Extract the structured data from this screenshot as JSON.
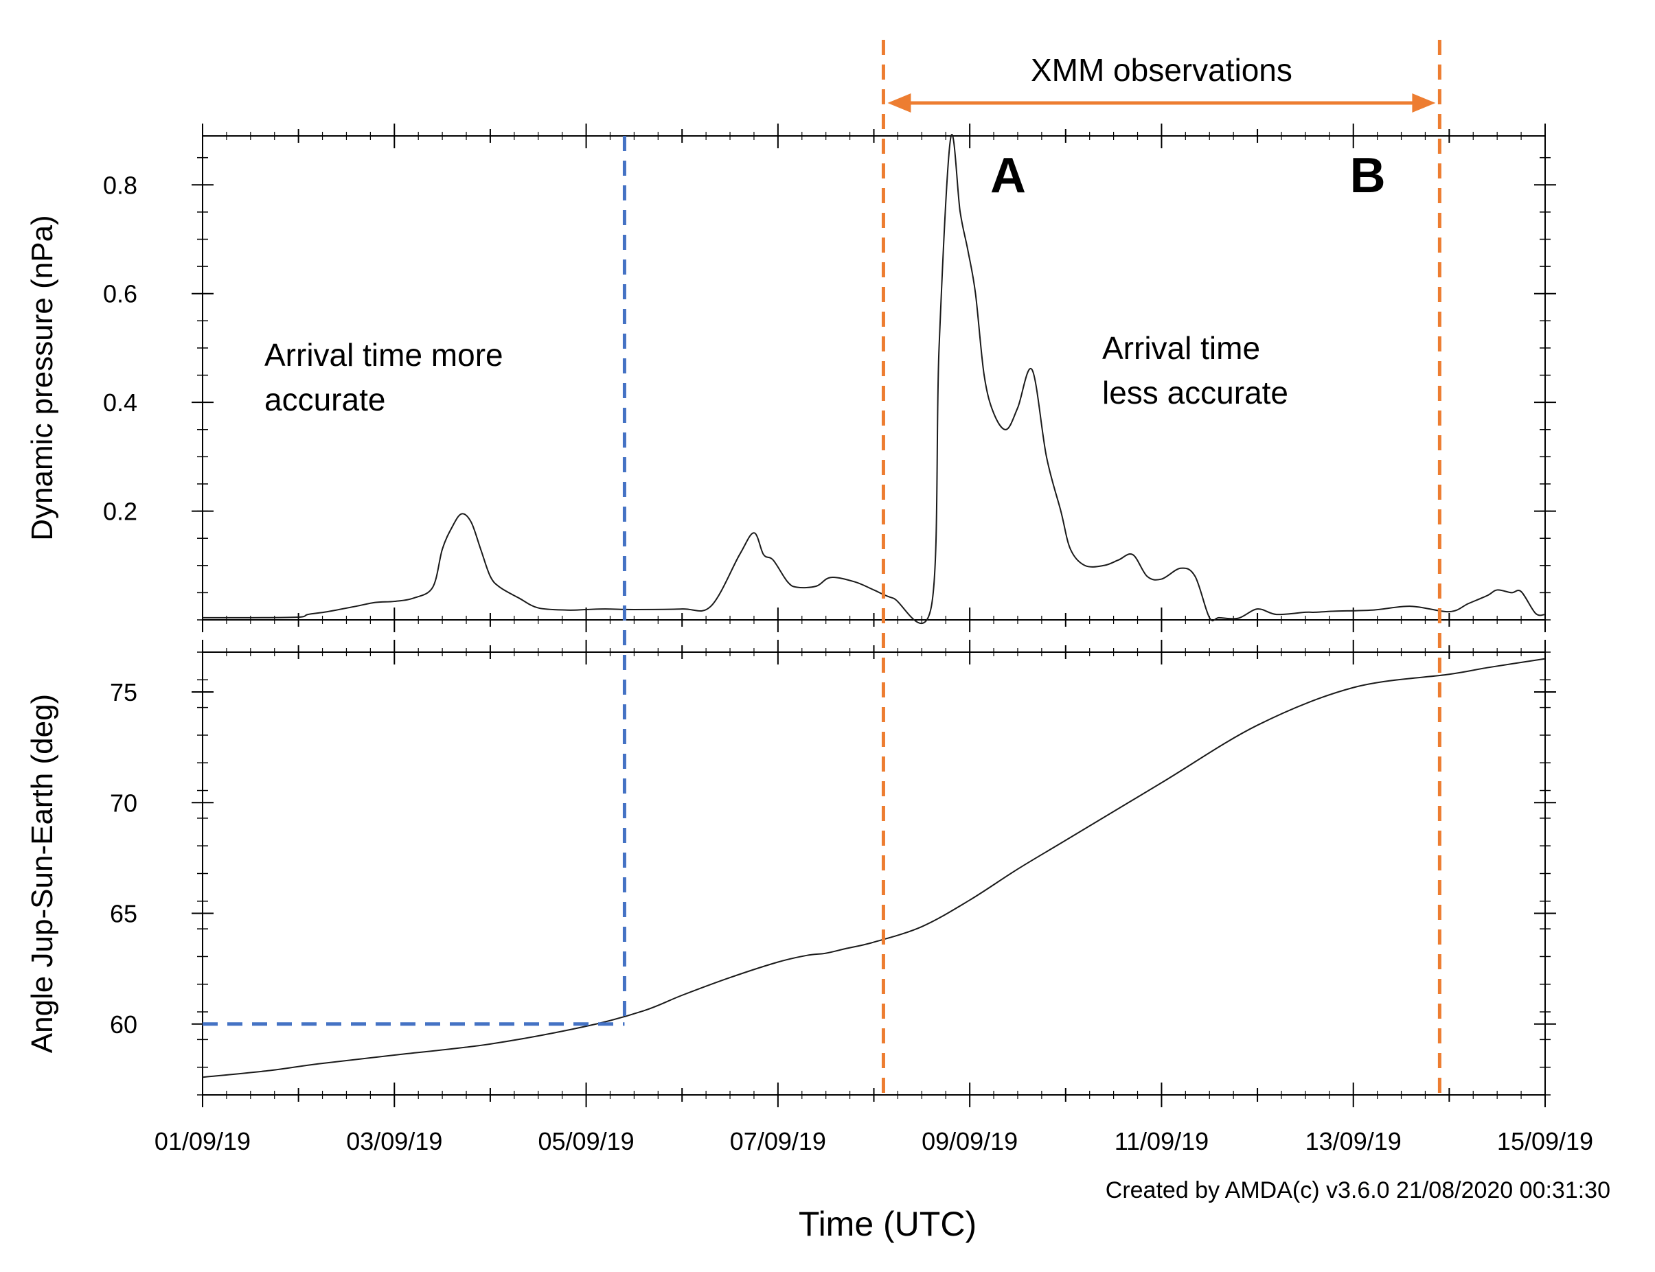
{
  "colors": {
    "orange": "#ED7D31",
    "blue": "#4472C4",
    "line": "#1a1a1a"
  },
  "chart_data": {
    "type": "line",
    "x_unit": "days since 01/09/19 00:00 UTC",
    "xlim": [
      0,
      14
    ],
    "x_tick_labels": [
      "01/09/19",
      "03/09/19",
      "05/09/19",
      "07/09/19",
      "09/09/19",
      "11/09/19",
      "13/09/19",
      "15/09/19"
    ],
    "x_tick_values": [
      0,
      2,
      4,
      6,
      8,
      10,
      12,
      14
    ],
    "xlabel": "Time (UTC)",
    "credit": "Created by AMDA(c) v3.6.0 21/08/2020 00:31:30",
    "panels": [
      {
        "name": "dynamic-pressure",
        "ylabel": "Dynamic pressure (nPa)",
        "ylim": [
          0,
          0.89
        ],
        "y_ticks": [
          0.2,
          0.4,
          0.6,
          0.8
        ],
        "y_tick_labels": [
          "0.2",
          "0.4",
          "0.6",
          "0.8"
        ],
        "series": [
          {
            "name": "Dynamic pressure",
            "x": [
              0,
              0.5,
              1.0,
              1.1,
              1.3,
              1.6,
              1.8,
              2.0,
              2.2,
              2.4,
              2.5,
              2.6,
              2.7,
              2.8,
              2.9,
              3.0,
              3.1,
              3.3,
              3.5,
              3.8,
              4.0,
              4.2,
              4.5,
              5.0,
              5.3,
              5.6,
              5.75,
              5.85,
              5.95,
              6.1,
              6.2,
              6.4,
              6.55,
              6.8,
              7.0,
              7.2,
              7.6,
              7.68,
              7.8,
              7.9,
              7.98,
              8.06,
              8.15,
              8.25,
              8.38,
              8.5,
              8.65,
              8.8,
              8.95,
              9.05,
              9.2,
              9.4,
              9.55,
              9.7,
              9.85,
              10.0,
              10.2,
              10.35,
              10.5,
              10.6,
              10.8,
              11.0,
              11.2,
              11.5,
              11.6,
              11.8,
              12.2,
              12.6,
              13.0,
              13.2,
              13.4,
              13.5,
              13.65,
              13.75,
              13.9,
              14.0
            ],
            "y": [
              0.004,
              0.004,
              0.005,
              0.01,
              0.015,
              0.025,
              0.032,
              0.034,
              0.04,
              0.06,
              0.13,
              0.17,
              0.195,
              0.18,
              0.13,
              0.08,
              0.06,
              0.04,
              0.022,
              0.018,
              0.019,
              0.02,
              0.019,
              0.02,
              0.025,
              0.12,
              0.16,
              0.12,
              0.11,
              0.07,
              0.06,
              0.062,
              0.078,
              0.07,
              0.055,
              0.04,
              0.025,
              0.5,
              0.885,
              0.75,
              0.68,
              0.6,
              0.45,
              0.38,
              0.35,
              0.39,
              0.46,
              0.3,
              0.2,
              0.13,
              0.1,
              0.1,
              0.11,
              0.12,
              0.08,
              0.075,
              0.095,
              0.08,
              0.004,
              0.004,
              0.003,
              0.02,
              0.01,
              0.014,
              0.014,
              0.016,
              0.018,
              0.025,
              0.015,
              0.03,
              0.045,
              0.055,
              0.05,
              0.052,
              0.012,
              0.01
            ]
          }
        ]
      },
      {
        "name": "angle-jup-sun-earth",
        "ylabel": "Angle Jup-Sun-Earth (deg)",
        "ylim": [
          56.8,
          76.8
        ],
        "y_ticks": [
          60,
          65,
          70,
          75
        ],
        "y_tick_labels": [
          "60",
          "65",
          "70",
          "75"
        ],
        "series": [
          {
            "name": "Angle Jup-Sun-Earth",
            "x": [
              0,
              0.7,
              1.2,
              2.0,
              3.0,
              4.0,
              4.6,
              5.0,
              5.5,
              6.0,
              6.3,
              6.5,
              6.7,
              7.0,
              7.5,
              8.0,
              8.5,
              9.0,
              10.0,
              11.0,
              12.0,
              13.0,
              13.4,
              14.0
            ],
            "y": [
              57.6,
              57.9,
              58.2,
              58.6,
              59.1,
              59.9,
              60.6,
              61.3,
              62.1,
              62.8,
              63.1,
              63.2,
              63.4,
              63.7,
              64.4,
              65.6,
              67.0,
              68.3,
              70.9,
              73.5,
              75.2,
              75.8,
              76.1,
              76.5
            ]
          }
        ]
      }
    ],
    "annotations": {
      "xmm_label": "XMM observations",
      "xmm_start_x": 7.1,
      "xmm_end_x": 12.9,
      "marker_a": "A",
      "marker_a_x": 8.4,
      "marker_b": "B",
      "marker_b_x": 12.15,
      "left_region_line1": "Arrival time more",
      "left_region_line2": "accurate",
      "right_region_line1": "Arrival time",
      "right_region_line2": "less accurate",
      "blue_cutoff_x": 4.4,
      "blue_cutoff_angle": 60.0
    }
  }
}
